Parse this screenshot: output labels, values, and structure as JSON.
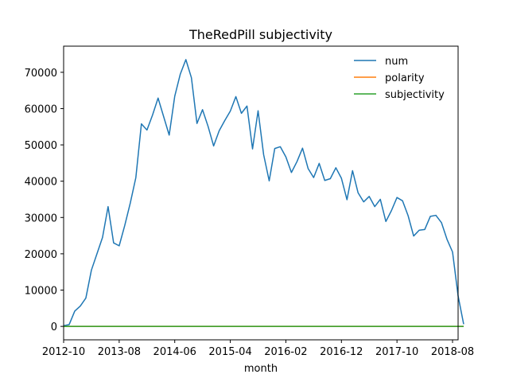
{
  "chart_data": {
    "type": "line",
    "title": "TheRedPill subjectivity",
    "xlabel": "month",
    "ylabel": "",
    "xlim": [
      0,
      71
    ],
    "ylim": [
      -3700,
      77200
    ],
    "x_ticks": [
      {
        "label": "2012-10",
        "index": 0
      },
      {
        "label": "2013-08",
        "index": 10
      },
      {
        "label": "2014-06",
        "index": 20
      },
      {
        "label": "2015-04",
        "index": 30
      },
      {
        "label": "2016-02",
        "index": 40
      },
      {
        "label": "2016-12",
        "index": 50
      },
      {
        "label": "2017-10",
        "index": 60
      },
      {
        "label": "2018-08",
        "index": 70
      }
    ],
    "y_ticks": [
      0,
      10000,
      20000,
      30000,
      40000,
      50000,
      60000,
      70000
    ],
    "legend_position": "top-right",
    "grid": false,
    "series": [
      {
        "name": "num",
        "color": "#1f77b4",
        "values": [
          200,
          500,
          4200,
          5600,
          7800,
          15500,
          20000,
          24500,
          33000,
          23000,
          22200,
          27800,
          34000,
          41000,
          55800,
          54100,
          58200,
          62900,
          57800,
          52700,
          63400,
          69500,
          73500,
          68500,
          55900,
          59700,
          55100,
          49700,
          53900,
          56700,
          59300,
          63300,
          58700,
          60700,
          48900,
          59400,
          47300,
          40100,
          49000,
          49500,
          46700,
          42400,
          45400,
          49100,
          43500,
          41000,
          44900,
          40200,
          40700,
          43700,
          40800,
          34900,
          42900,
          36800,
          34300,
          35800,
          33000,
          35000,
          28900,
          31900,
          35500,
          34600,
          30500,
          24900,
          26500,
          26700,
          30300,
          30600,
          28600,
          24000,
          20500,
          8400,
          600
        ]
      },
      {
        "name": "polarity",
        "color": "#ff7f0e",
        "values": [
          0,
          0,
          0,
          0,
          0,
          0,
          0,
          0,
          0,
          0,
          0,
          0,
          0,
          0,
          0,
          0,
          0,
          0,
          0,
          0,
          0,
          0,
          0,
          0,
          0,
          0,
          0,
          0,
          0,
          0,
          0,
          0,
          0,
          0,
          0,
          0,
          0,
          0,
          0,
          0,
          0,
          0,
          0,
          0,
          0,
          0,
          0,
          0,
          0,
          0,
          0,
          0,
          0,
          0,
          0,
          0,
          0,
          0,
          0,
          0,
          0,
          0,
          0,
          0,
          0,
          0,
          0,
          0,
          0,
          0,
          0,
          0,
          0
        ]
      },
      {
        "name": "subjectivity",
        "color": "#2ca02c",
        "values": [
          0,
          0,
          0,
          0,
          0,
          0,
          0,
          0,
          0,
          0,
          0,
          0,
          0,
          0,
          0,
          0,
          0,
          0,
          0,
          0,
          0,
          0,
          0,
          0,
          0,
          0,
          0,
          0,
          0,
          0,
          0,
          0,
          0,
          0,
          0,
          0,
          0,
          0,
          0,
          0,
          0,
          0,
          0,
          0,
          0,
          0,
          0,
          0,
          0,
          0,
          0,
          0,
          0,
          0,
          0,
          0,
          0,
          0,
          0,
          0,
          0,
          0,
          0,
          0,
          0,
          0,
          0,
          0,
          0,
          0,
          0,
          0,
          0
        ]
      }
    ]
  }
}
